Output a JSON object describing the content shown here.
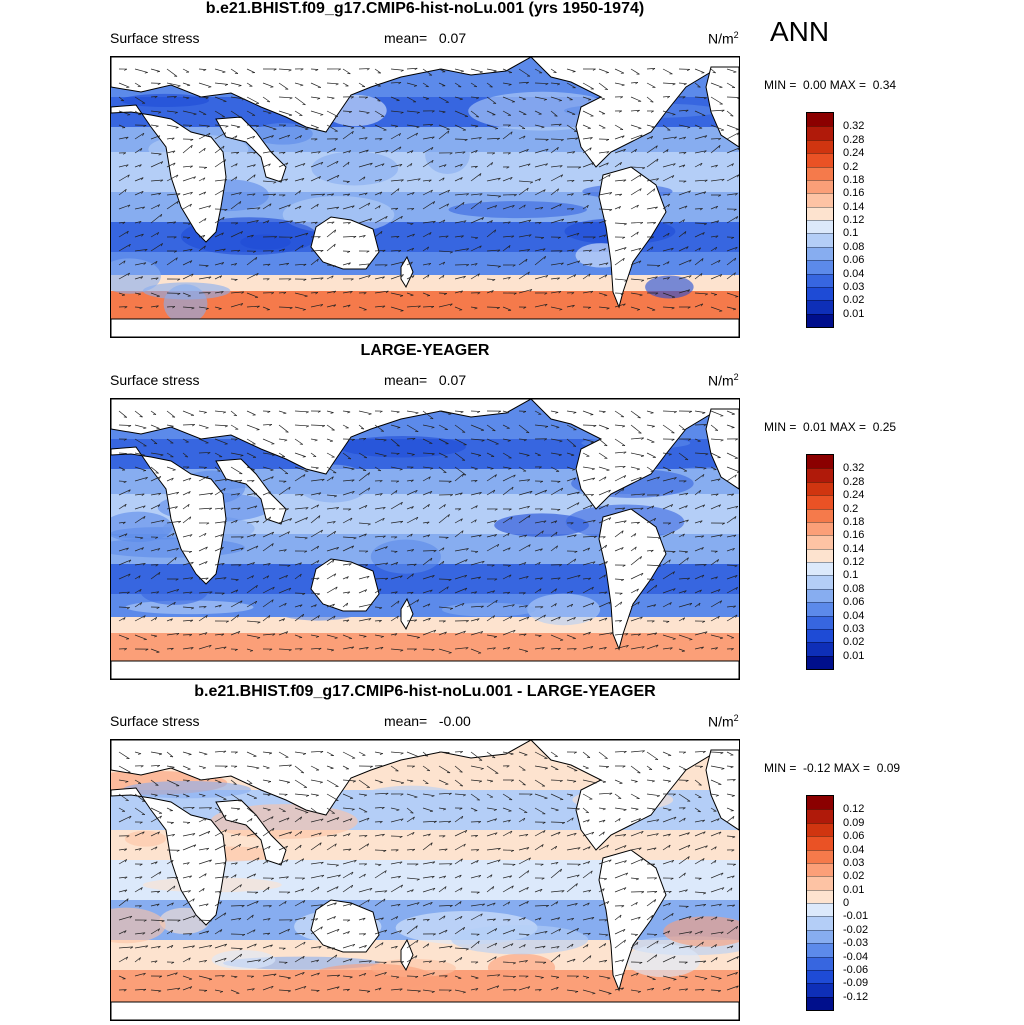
{
  "season": "ANN",
  "panels": [
    {
      "title": "b.e21.BHIST.f09_g17.CMIP6-hist-noLu.001 (yrs 1950-1974)",
      "variable": "Surface stress",
      "mean_label": "mean=",
      "mean_value": "0.07",
      "units": "N/m",
      "units_exp": "2",
      "min_label": "MIN =",
      "min_value": "0.00",
      "max_label": "MAX =",
      "max_value": "0.34",
      "colorbar_labels": [
        "0.32",
        "0.28",
        "0.24",
        "0.2",
        "0.18",
        "0.16",
        "0.14",
        "0.12",
        "0.1",
        "0.08",
        "0.06",
        "0.04",
        "0.03",
        "0.02",
        "0.01"
      ],
      "colorbar_colors": [
        "#8b0000",
        "#b01a0a",
        "#d03510",
        "#ea5225",
        "#f57a4b",
        "#fb9f78",
        "#fdc3a4",
        "#fde3cf",
        "#dce9fb",
        "#b4cef7",
        "#87adf0",
        "#5c8aea",
        "#3766e0",
        "#1e4bd6",
        "#0e2fb8",
        "#000f8c"
      ],
      "style": "stress"
    },
    {
      "title": "LARGE-YEAGER",
      "variable": "Surface stress",
      "mean_label": "mean=",
      "mean_value": "0.07",
      "units": "N/m",
      "units_exp": "2",
      "min_label": "MIN =",
      "min_value": "0.01",
      "max_label": "MAX =",
      "max_value": "0.25",
      "colorbar_labels": [
        "0.32",
        "0.28",
        "0.24",
        "0.2",
        "0.18",
        "0.16",
        "0.14",
        "0.12",
        "0.1",
        "0.08",
        "0.06",
        "0.04",
        "0.03",
        "0.02",
        "0.01"
      ],
      "colorbar_colors": [
        "#8b0000",
        "#b01a0a",
        "#d03510",
        "#ea5225",
        "#f57a4b",
        "#fb9f78",
        "#fdc3a4",
        "#fde3cf",
        "#dce9fb",
        "#b4cef7",
        "#87adf0",
        "#5c8aea",
        "#3766e0",
        "#1e4bd6",
        "#0e2fb8",
        "#000f8c"
      ],
      "style": "stress"
    },
    {
      "title": "b.e21.BHIST.f09_g17.CMIP6-hist-noLu.001 - LARGE-YEAGER",
      "variable": "Surface stress",
      "mean_label": "mean=",
      "mean_value": "-0.00",
      "units": "N/m",
      "units_exp": "2",
      "min_label": "MIN =",
      "min_value": "-0.12",
      "max_label": "MAX =",
      "max_value": "0.09",
      "colorbar_labels": [
        "0.12",
        "0.09",
        "0.06",
        "0.04",
        "0.03",
        "0.02",
        "0.01",
        "0",
        "-0.01",
        "-0.02",
        "-0.03",
        "-0.04",
        "-0.06",
        "-0.09",
        "-0.12"
      ],
      "colorbar_colors": [
        "#8b0000",
        "#b01a0a",
        "#d03510",
        "#ea5225",
        "#f57a4b",
        "#fb9f78",
        "#fdc3a4",
        "#fde3cf",
        "#dce9fb",
        "#b4cef7",
        "#87adf0",
        "#5c8aea",
        "#3766e0",
        "#1e4bd6",
        "#0e2fb8",
        "#000f8c"
      ],
      "style": "diff"
    }
  ]
}
